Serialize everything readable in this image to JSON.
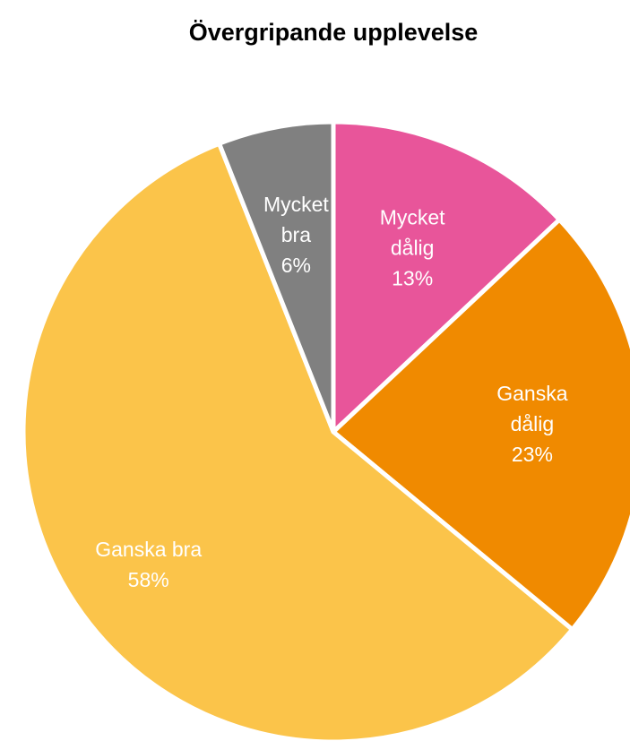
{
  "chart_data": {
    "type": "pie",
    "title": "Övergripande upplevelse",
    "categories": [
      "Mycket dålig",
      "Ganska dålig",
      "Ganska bra",
      "Mycket bra"
    ],
    "values": [
      13,
      23,
      58,
      6
    ],
    "value_labels": [
      "13%",
      "23%",
      "58%",
      "6%"
    ],
    "colors": [
      "#e8559a",
      "#f08a00",
      "#fbc44a",
      "#808080"
    ]
  }
}
